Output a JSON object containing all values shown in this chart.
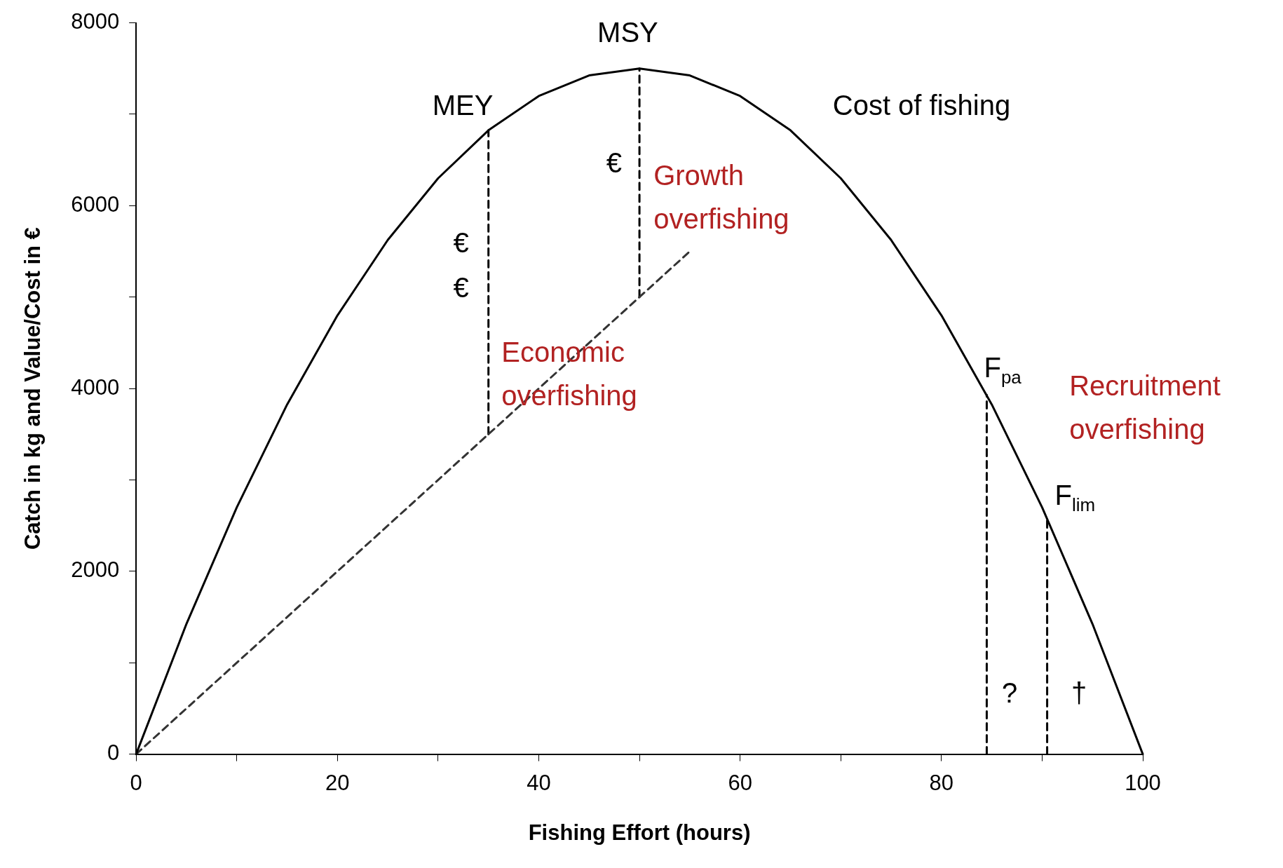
{
  "chart_data": {
    "type": "line",
    "xlabel": "Fishing Effort (hours)",
    "ylabel": "Catch in kg and Value/Cost in €",
    "xlim": [
      0,
      100
    ],
    "xticks": [
      0,
      {
        "value": 10,
        "label": null
      },
      20,
      {
        "value": 30,
        "label": null
      },
      40,
      {
        "value": 50,
        "label": null
      },
      60,
      {
        "value": 70,
        "label": null
      },
      80,
      {
        "value": 90,
        "label": null
      },
      100
    ],
    "ylim": [
      0,
      8000
    ],
    "yticks": [
      0,
      {
        "value": 1000,
        "label": null
      },
      2000,
      {
        "value": 3000,
        "label": null
      },
      4000,
      {
        "value": 5000,
        "label": null
      },
      6000,
      {
        "value": 7000,
        "label": null
      },
      8000
    ],
    "grid": false,
    "legend": false,
    "series": [
      {
        "color": "#000000",
        "line_style": "solid",
        "x": [
          0,
          5,
          10,
          15,
          20,
          25,
          30,
          35,
          40,
          45,
          50,
          55,
          60,
          65,
          70,
          75,
          80,
          85,
          90,
          95,
          100
        ],
        "values": [
          0,
          1425,
          2700,
          3825,
          4800,
          5625,
          6300,
          6825,
          7200,
          7425,
          7500,
          7425,
          7200,
          6825,
          6300,
          5625,
          4800,
          3825,
          2700,
          1425,
          0
        ]
      },
      {
        "color": "#333333",
        "line_style": "dashed",
        "x": [
          0,
          55
        ],
        "values": [
          0,
          5500
        ]
      },
      {
        "color": "#000000",
        "line_style": "dashed",
        "x": [
          35,
          35
        ],
        "values": [
          3500,
          6825
        ]
      },
      {
        "color": "#000000",
        "line_style": "dashed",
        "x": [
          50,
          50
        ],
        "values": [
          5000,
          7500
        ]
      },
      {
        "color": "#000000",
        "line_style": "dashed",
        "x": [
          84.5,
          84.5
        ],
        "values": [
          0,
          3929
        ]
      },
      {
        "color": "#000000",
        "line_style": "dashed",
        "x": [
          90.5,
          90.5
        ],
        "values": [
          0,
          2579
        ]
      }
    ],
    "annotations": [
      {
        "text": "MSY",
        "x": 50,
        "y": 7500
      },
      {
        "text": "MEY",
        "x": 35,
        "y": 6825
      },
      "Cost of fishing",
      "€",
      "€",
      "€",
      "Growth\noverfishing",
      "Economic\noverfishing",
      "Recruitment\noverfishing",
      {
        "text": "F$_{pa}$",
        "x": 84.5,
        "y": 3929
      },
      {
        "text": "F$_{lim}$",
        "x": 90.5,
        "y": 2579
      },
      "?",
      "†"
    ]
  }
}
